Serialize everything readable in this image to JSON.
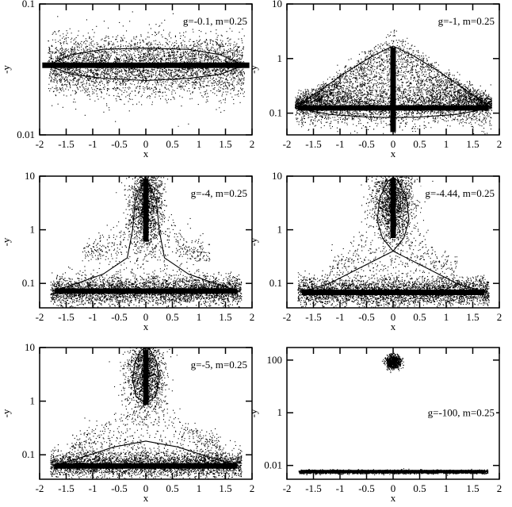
{
  "chart_data": [
    {
      "type": "scatter",
      "annotation": "g=-0.1, m=0.25",
      "xlabel": "x",
      "ylabel": "-y",
      "xlim": [
        -2,
        2
      ],
      "ylim": [
        0.01,
        0.1
      ],
      "yscale": "log",
      "x_ticks": [
        "-2",
        "-1.5",
        "-1",
        "-0.5",
        "0",
        "0.5",
        "1",
        "1.5",
        "2"
      ],
      "y_ticks": [
        {
          "v": 0.01,
          "label": "0.01"
        },
        {
          "v": 0.1,
          "label": "0.1"
        }
      ],
      "cloud": [
        {
          "x": [
            -1.85,
            1.85
          ],
          "ylogc": -1.47,
          "ylogs": 0.11,
          "shape": "flat",
          "n": 4200
        }
      ],
      "bars": [
        {
          "orient": "h",
          "x0": -1.95,
          "x1": 1.95,
          "y": 0.034
        }
      ],
      "curve": {
        "upper": [
          [
            -1.85,
            0.034
          ],
          [
            -1.4,
            0.041
          ],
          [
            -0.8,
            0.045
          ],
          [
            0,
            0.046
          ],
          [
            0.8,
            0.045
          ],
          [
            1.4,
            0.041
          ],
          [
            1.85,
            0.034
          ]
        ],
        "lower": [
          [
            -1.85,
            0.034
          ],
          [
            -1.4,
            0.029
          ],
          [
            -0.8,
            0.027
          ],
          [
            0,
            0.026
          ],
          [
            0.8,
            0.027
          ],
          [
            1.4,
            0.029
          ],
          [
            1.85,
            0.034
          ]
        ]
      }
    },
    {
      "type": "scatter",
      "annotation": "g=-1, m=0.25",
      "xlabel": "x",
      "ylabel": "-y",
      "xlim": [
        -2,
        2
      ],
      "ylim": [
        0.04,
        10
      ],
      "yscale": "log",
      "x_ticks": [
        "-2",
        "-1.5",
        "-1",
        "-0.5",
        "0",
        "0.5",
        "1",
        "1.5",
        "2"
      ],
      "y_ticks": [
        {
          "v": 0.1,
          "label": "0.1"
        },
        {
          "v": 1,
          "label": "1"
        },
        {
          "v": 10,
          "label": "10"
        }
      ],
      "cloud": [
        {
          "x": [
            -1.85,
            1.85
          ],
          "ylogc": -0.9,
          "ylogs": 0.16,
          "shape": "triangle",
          "peak": 0.2,
          "n": 5500
        }
      ],
      "bars": [
        {
          "orient": "h",
          "x0": -1.8,
          "x1": 1.8,
          "y": 0.125
        },
        {
          "orient": "v",
          "x": 0,
          "y0": 0.045,
          "y1": 1.6
        }
      ],
      "curve": {
        "upper": [
          [
            -1.85,
            0.125
          ],
          [
            -1.4,
            0.25
          ],
          [
            -0.9,
            0.55
          ],
          [
            -0.4,
            1.1
          ],
          [
            0,
            1.7
          ],
          [
            0.4,
            1.1
          ],
          [
            0.9,
            0.55
          ],
          [
            1.4,
            0.25
          ],
          [
            1.85,
            0.125
          ]
        ],
        "lower": [
          [
            -1.85,
            0.125
          ],
          [
            -1.2,
            0.095
          ],
          [
            -0.5,
            0.085
          ],
          [
            0,
            0.083
          ],
          [
            0.5,
            0.085
          ],
          [
            1.2,
            0.095
          ],
          [
            1.85,
            0.125
          ]
        ]
      }
    },
    {
      "type": "scatter",
      "annotation": "g=-4, m=0.25",
      "xlabel": "x",
      "ylabel": "-y",
      "xlim": [
        -2,
        2
      ],
      "ylim": [
        0.035,
        10
      ],
      "yscale": "log",
      "x_ticks": [
        "-2",
        "-1.5",
        "-1",
        "-0.5",
        "0",
        "0.5",
        "1",
        "1.5",
        "2"
      ],
      "y_ticks": [
        {
          "v": 0.1,
          "label": "0.1"
        },
        {
          "v": 1,
          "label": "1"
        },
        {
          "v": 10,
          "label": "10"
        }
      ],
      "cloud": [
        {
          "x": [
            -1.8,
            1.8
          ],
          "ylogc": -1.13,
          "ylogs": 0.13,
          "shape": "flat",
          "n": 3800
        },
        {
          "x": [
            -0.35,
            0.35
          ],
          "ylogc": 0.55,
          "ylogs": 0.42,
          "shape": "blob",
          "n": 1700
        },
        {
          "x": [
            -1.2,
            1.2
          ],
          "ylogc": -0.6,
          "ylogs": 0.28,
          "shape": "triangle",
          "peak": 0.1,
          "n": 600
        }
      ],
      "bars": [
        {
          "orient": "h",
          "x0": -1.72,
          "x1": 1.72,
          "y": 0.072
        },
        {
          "orient": "v",
          "x": 0,
          "y0": 0.6,
          "y1": 9
        }
      ],
      "curve": {
        "upper": [
          [
            -1.75,
            0.072
          ],
          [
            -1.3,
            0.1
          ],
          [
            -0.8,
            0.15
          ],
          [
            -0.35,
            0.3
          ],
          [
            -0.25,
            1.0
          ],
          [
            -0.2,
            3.5
          ],
          [
            0,
            9.5
          ],
          [
            0.2,
            3.5
          ],
          [
            0.25,
            1.0
          ],
          [
            0.35,
            0.3
          ],
          [
            0.8,
            0.15
          ],
          [
            1.3,
            0.1
          ],
          [
            1.75,
            0.072
          ]
        ],
        "lower": [
          [
            -1.75,
            0.072
          ],
          [
            -1,
            0.068
          ],
          [
            0,
            0.067
          ],
          [
            1,
            0.068
          ],
          [
            1.75,
            0.072
          ]
        ]
      }
    },
    {
      "type": "scatter",
      "annotation": "g=-4.44, m=0.25",
      "xlabel": "x",
      "ylabel": "-y",
      "xlim": [
        -2,
        2
      ],
      "ylim": [
        0.035,
        10
      ],
      "yscale": "log",
      "x_ticks": [
        "-2",
        "-1.5",
        "-1",
        "-0.5",
        "0",
        "0.5",
        "1",
        "1.5",
        "2"
      ],
      "y_ticks": [
        {
          "v": 0.1,
          "label": "0.1"
        },
        {
          "v": 1,
          "label": "1"
        },
        {
          "v": 10,
          "label": "10"
        }
      ],
      "cloud": [
        {
          "x": [
            -1.8,
            1.8
          ],
          "ylogc": -1.15,
          "ylogs": 0.13,
          "shape": "flat",
          "n": 3800
        },
        {
          "x": [
            -0.45,
            0.45
          ],
          "ylogc": 0.58,
          "ylogs": 0.38,
          "shape": "blob",
          "n": 1900
        },
        {
          "x": [
            -1.2,
            1.2
          ],
          "ylogc": -0.8,
          "ylogs": 0.25,
          "shape": "triangle",
          "peak": 0.1,
          "n": 500
        }
      ],
      "bars": [
        {
          "orient": "h",
          "x0": -1.72,
          "x1": 1.72,
          "y": 0.068
        },
        {
          "orient": "v",
          "x": 0,
          "y0": 0.7,
          "y1": 9
        }
      ],
      "curve": {
        "upper": [
          [
            -1.75,
            0.068
          ],
          [
            -1.2,
            0.1
          ],
          [
            -0.6,
            0.2
          ],
          [
            0,
            0.4
          ],
          [
            0.2,
            0.7
          ],
          [
            0.3,
            1.5
          ],
          [
            0.25,
            4.0
          ],
          [
            0.1,
            8.0
          ],
          [
            0,
            9.5
          ],
          [
            -0.1,
            8.0
          ],
          [
            -0.25,
            4.0
          ],
          [
            -0.3,
            1.5
          ],
          [
            -0.2,
            0.7
          ],
          [
            0,
            0.4
          ],
          [
            0.6,
            0.2
          ],
          [
            1.2,
            0.1
          ],
          [
            1.75,
            0.068
          ]
        ],
        "lower": [
          [
            -1.75,
            0.068
          ],
          [
            -1,
            0.064
          ],
          [
            0,
            0.063
          ],
          [
            1,
            0.064
          ],
          [
            1.75,
            0.068
          ]
        ]
      }
    },
    {
      "type": "scatter",
      "annotation": "g=-5, m=0.25",
      "xlabel": "x",
      "ylabel": "-y",
      "xlim": [
        -2,
        2
      ],
      "ylim": [
        0.035,
        10
      ],
      "yscale": "log",
      "x_ticks": [
        "-2",
        "-1.5",
        "-1",
        "-0.5",
        "0",
        "0.5",
        "1",
        "1.5",
        "2"
      ],
      "y_ticks": [
        {
          "v": 0.1,
          "label": "0.1"
        },
        {
          "v": 1,
          "label": "1"
        },
        {
          "v": 10,
          "label": "10"
        }
      ],
      "cloud": [
        {
          "x": [
            -1.8,
            1.8
          ],
          "ylogc": -1.17,
          "ylogs": 0.12,
          "shape": "flat",
          "n": 3600
        },
        {
          "x": [
            -0.4,
            0.4
          ],
          "ylogc": 0.5,
          "ylogs": 0.36,
          "shape": "blob",
          "n": 1700
        },
        {
          "x": [
            -1.4,
            1.4
          ],
          "ylogc": -0.9,
          "ylogs": 0.2,
          "shape": "triangle",
          "peak": 0.06,
          "n": 600
        }
      ],
      "bars": [
        {
          "orient": "h",
          "x0": -1.72,
          "x1": 1.72,
          "y": 0.062
        },
        {
          "orient": "v",
          "x": 0,
          "y0": 0.85,
          "y1": 9
        }
      ],
      "curve": {
        "upper": [
          [
            -1.75,
            0.062
          ],
          [
            -1.2,
            0.09
          ],
          [
            -0.6,
            0.14
          ],
          [
            0,
            0.18
          ],
          [
            0.6,
            0.14
          ],
          [
            1.2,
            0.09
          ],
          [
            1.75,
            0.062
          ]
        ],
        "lower": [
          [
            -1.75,
            0.062
          ],
          [
            -1,
            0.058
          ],
          [
            0,
            0.057
          ],
          [
            1,
            0.058
          ],
          [
            1.75,
            0.062
          ]
        ],
        "loop": [
          [
            0,
            0.9
          ],
          [
            0.18,
            1.2
          ],
          [
            0.25,
            2.5
          ],
          [
            0.2,
            5.5
          ],
          [
            0.08,
            9
          ],
          [
            0,
            10
          ],
          [
            -0.08,
            9
          ],
          [
            -0.2,
            5.5
          ],
          [
            -0.25,
            2.5
          ],
          [
            -0.18,
            1.2
          ],
          [
            0,
            0.9
          ]
        ]
      }
    },
    {
      "type": "scatter",
      "annotation": "g=-100, m=0.25",
      "xlabel": "x",
      "ylabel": "-y",
      "xlim": [
        -2,
        2
      ],
      "ylim": [
        0.003,
        300
      ],
      "yscale": "log",
      "x_ticks": [
        "-2",
        "-1.5",
        "-1",
        "-0.5",
        "0",
        "0.5",
        "1",
        "1.5",
        "2"
      ],
      "y_ticks": [
        {
          "v": 0.01,
          "label": "0.01"
        },
        {
          "v": 1,
          "label": "1"
        },
        {
          "v": 100,
          "label": "100"
        }
      ],
      "cloud": [
        {
          "x": [
            -1.78,
            1.78
          ],
          "ylogc": -2.23,
          "ylogs": 0.035,
          "shape": "flat",
          "n": 3000
        },
        {
          "x": [
            -0.15,
            0.15
          ],
          "ylogc": 1.95,
          "ylogs": 0.12,
          "shape": "blob",
          "n": 900
        }
      ],
      "bars": [
        {
          "orient": "h",
          "x0": -1.72,
          "x1": 1.72,
          "y": 0.0059,
          "thin": true
        }
      ],
      "curve": null
    }
  ]
}
